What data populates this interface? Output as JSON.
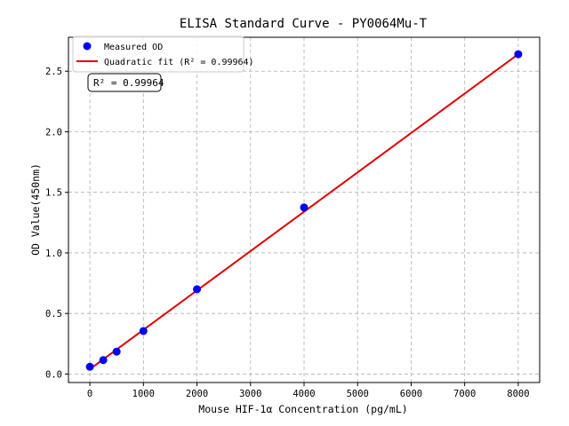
{
  "chart_data": {
    "type": "scatter",
    "title": "ELISA Standard Curve - PY0064Mu-T",
    "xlabel": "Mouse HIF-1α Concentration (pg/mL)",
    "ylabel": "OD Value(450nm)",
    "xlim": [
      -400,
      8400
    ],
    "ylim": [
      -0.07,
      2.78
    ],
    "xticks": [
      0,
      1000,
      2000,
      3000,
      4000,
      5000,
      6000,
      7000,
      8000
    ],
    "yticks": [
      0.0,
      0.5,
      1.0,
      1.5,
      2.0,
      2.5
    ],
    "grid": true,
    "legend_position": "top-left",
    "series": [
      {
        "name": "Measured OD",
        "kind": "points",
        "color": "#0000ff",
        "x": [
          0,
          250,
          500,
          1000,
          2000,
          4000,
          8000
        ],
        "y": [
          0.06,
          0.115,
          0.185,
          0.355,
          0.7,
          1.375,
          2.64
        ]
      },
      {
        "name": "Quadratic fit (R² = 0.99964)",
        "kind": "line",
        "color": "#e00000",
        "x": [
          0,
          8000
        ],
        "y": [
          0.04,
          2.64
        ]
      }
    ],
    "annotation": "R² = 0.99964"
  }
}
